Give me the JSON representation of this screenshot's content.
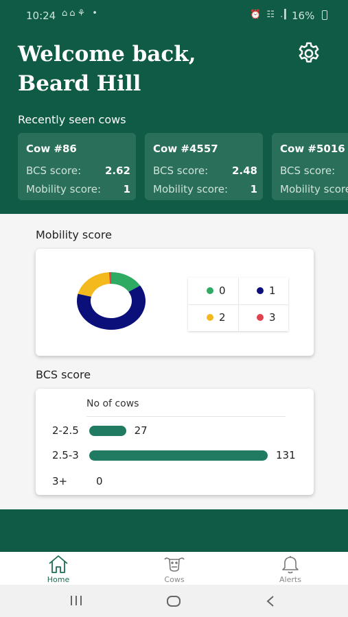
{
  "status_bar": {
    "time": "10:24",
    "left_icons": "⌂⌂⚘ •",
    "right_icons": "⏰ ☷ .▎",
    "battery": "16%"
  },
  "header": {
    "welcome_line1": "Welcome back,",
    "welcome_line2": "Beard Hill",
    "settings_icon": "gear-icon",
    "recent_title": "Recently seen cows"
  },
  "recent_cows": [
    {
      "name": "Cow #86",
      "bcs_label": "BCS score:",
      "bcs": "2.62",
      "mobility_label": "Mobility score:",
      "mobility": "1"
    },
    {
      "name": "Cow #4557",
      "bcs_label": "BCS score:",
      "bcs": "2.48",
      "mobility_label": "Mobility score:",
      "mobility": "1"
    },
    {
      "name": "Cow #5016",
      "bcs_label": "BCS score:",
      "bcs": "",
      "mobility_label": "Mobility score:",
      "mobility": ""
    }
  ],
  "mobility": {
    "title": "Mobility score",
    "legend": [
      {
        "label": "0",
        "color": "#2eaa63"
      },
      {
        "label": "1",
        "color": "#0a0f7a"
      },
      {
        "label": "2",
        "color": "#f4b91c"
      },
      {
        "label": "3",
        "color": "#e0414d"
      }
    ]
  },
  "bcs": {
    "title": "BCS score",
    "column_header": "No of cows",
    "max": 131
  },
  "chart_data": [
    {
      "type": "pie",
      "title": "Mobility score",
      "categories": [
        "0",
        "1",
        "2",
        "3"
      ],
      "values": [
        16,
        63,
        20,
        1
      ],
      "colors": [
        "#2eaa63",
        "#0a0f7a",
        "#f4b91c",
        "#e0414d"
      ],
      "legend_placement": "right"
    },
    {
      "type": "bar",
      "title": "BCS score",
      "xlabel": "No of cows",
      "categories": [
        "2-2.5",
        "2.5-3",
        "3+"
      ],
      "values": [
        27,
        131,
        0
      ],
      "color": "#217a62"
    }
  ],
  "bottom_nav": [
    {
      "label": "Home",
      "icon": "home-icon",
      "active": true
    },
    {
      "label": "Cows",
      "icon": "cow-icon",
      "active": false
    },
    {
      "label": "Alerts",
      "icon": "bell-icon",
      "active": false
    }
  ],
  "system_nav": {
    "recents": "recents-icon",
    "home": "home-pill-icon",
    "back": "back-icon"
  }
}
